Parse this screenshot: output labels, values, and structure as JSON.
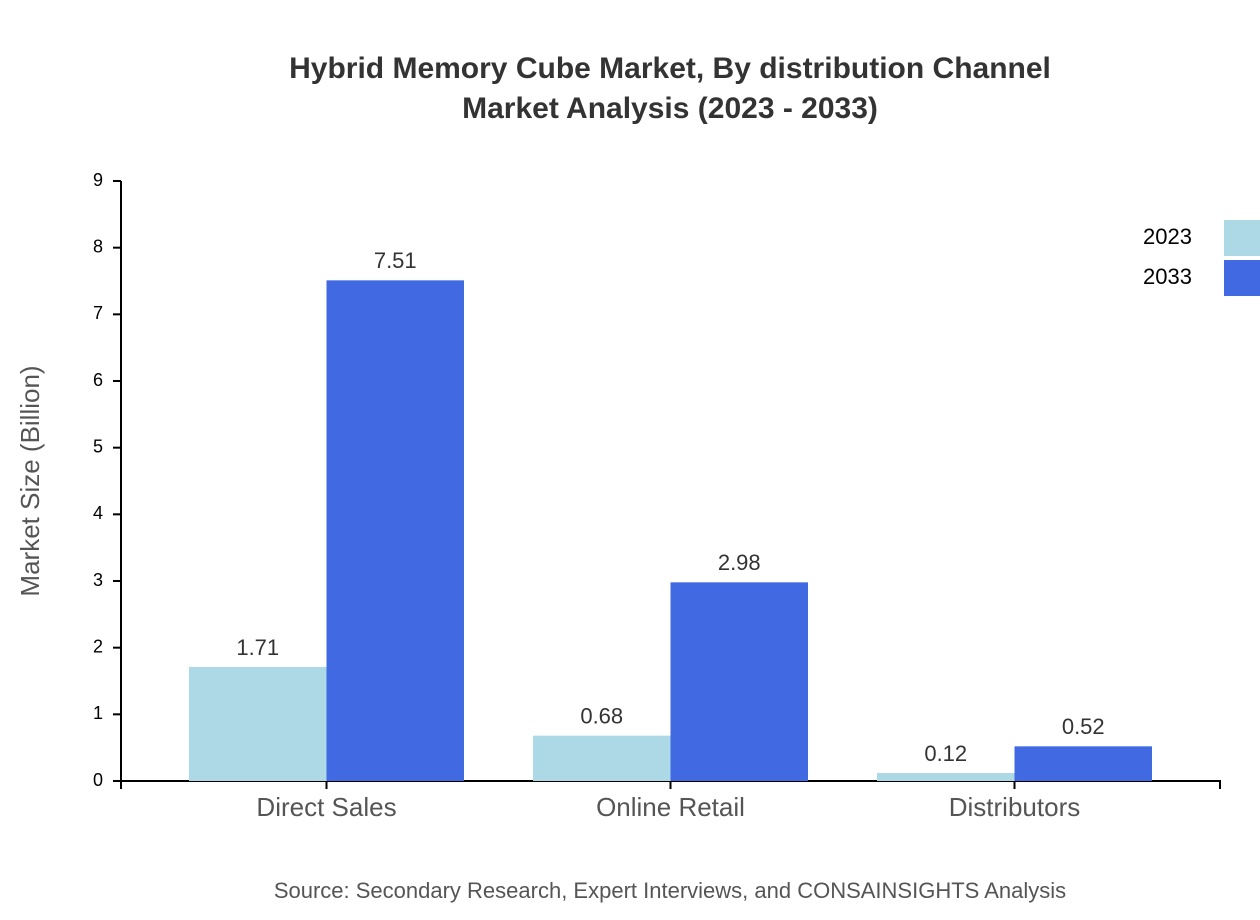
{
  "chart_data": {
    "type": "bar",
    "title": [
      "Hybrid Memory Cube Market, By distribution Channel",
      "Market Analysis (2023 - 2033)"
    ],
    "y_label": "Market Size (Billion)",
    "source": "Source: Secondary Research, Expert Interviews, and CONSAINSIGHTS Analysis",
    "categories": [
      "Direct Sales",
      "Online Retail",
      "Distributors"
    ],
    "series": [
      {
        "name": "2023",
        "color": "#add8e6",
        "values": [
          1.71,
          0.68,
          0.12
        ]
      },
      {
        "name": "2033",
        "color": "#4169e1",
        "values": [
          7.51,
          2.98,
          0.52
        ]
      }
    ],
    "ylim": [
      0,
      9
    ],
    "yticks": [
      0,
      1,
      2,
      3,
      4,
      5,
      6,
      7,
      8,
      9
    ],
    "legend": "top-right"
  }
}
